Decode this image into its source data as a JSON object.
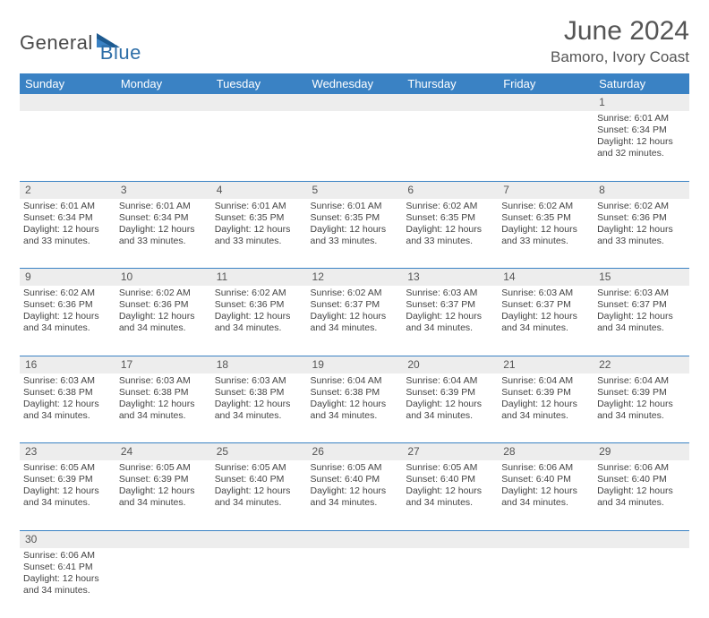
{
  "logo": {
    "dark": "General",
    "blue": "Blue"
  },
  "title": "June 2024",
  "location": "Bamoro, Ivory Coast",
  "colors": {
    "header_bg": "#3a82c4",
    "header_fg": "#ffffff",
    "daynum_bg": "#ededed",
    "rule": "#3a82c4",
    "text": "#444444",
    "logo_dark": "#4a4a4a",
    "logo_blue": "#2f6fa8"
  },
  "weekdays": [
    "Sunday",
    "Monday",
    "Tuesday",
    "Wednesday",
    "Thursday",
    "Friday",
    "Saturday"
  ],
  "first_weekday_index": 6,
  "days": [
    {
      "n": 1,
      "sr": "6:01 AM",
      "ss": "6:34 PM",
      "dl": "12 hours and 32 minutes."
    },
    {
      "n": 2,
      "sr": "6:01 AM",
      "ss": "6:34 PM",
      "dl": "12 hours and 33 minutes."
    },
    {
      "n": 3,
      "sr": "6:01 AM",
      "ss": "6:34 PM",
      "dl": "12 hours and 33 minutes."
    },
    {
      "n": 4,
      "sr": "6:01 AM",
      "ss": "6:35 PM",
      "dl": "12 hours and 33 minutes."
    },
    {
      "n": 5,
      "sr": "6:01 AM",
      "ss": "6:35 PM",
      "dl": "12 hours and 33 minutes."
    },
    {
      "n": 6,
      "sr": "6:02 AM",
      "ss": "6:35 PM",
      "dl": "12 hours and 33 minutes."
    },
    {
      "n": 7,
      "sr": "6:02 AM",
      "ss": "6:35 PM",
      "dl": "12 hours and 33 minutes."
    },
    {
      "n": 8,
      "sr": "6:02 AM",
      "ss": "6:36 PM",
      "dl": "12 hours and 33 minutes."
    },
    {
      "n": 9,
      "sr": "6:02 AM",
      "ss": "6:36 PM",
      "dl": "12 hours and 34 minutes."
    },
    {
      "n": 10,
      "sr": "6:02 AM",
      "ss": "6:36 PM",
      "dl": "12 hours and 34 minutes."
    },
    {
      "n": 11,
      "sr": "6:02 AM",
      "ss": "6:36 PM",
      "dl": "12 hours and 34 minutes."
    },
    {
      "n": 12,
      "sr": "6:02 AM",
      "ss": "6:37 PM",
      "dl": "12 hours and 34 minutes."
    },
    {
      "n": 13,
      "sr": "6:03 AM",
      "ss": "6:37 PM",
      "dl": "12 hours and 34 minutes."
    },
    {
      "n": 14,
      "sr": "6:03 AM",
      "ss": "6:37 PM",
      "dl": "12 hours and 34 minutes."
    },
    {
      "n": 15,
      "sr": "6:03 AM",
      "ss": "6:37 PM",
      "dl": "12 hours and 34 minutes."
    },
    {
      "n": 16,
      "sr": "6:03 AM",
      "ss": "6:38 PM",
      "dl": "12 hours and 34 minutes."
    },
    {
      "n": 17,
      "sr": "6:03 AM",
      "ss": "6:38 PM",
      "dl": "12 hours and 34 minutes."
    },
    {
      "n": 18,
      "sr": "6:03 AM",
      "ss": "6:38 PM",
      "dl": "12 hours and 34 minutes."
    },
    {
      "n": 19,
      "sr": "6:04 AM",
      "ss": "6:38 PM",
      "dl": "12 hours and 34 minutes."
    },
    {
      "n": 20,
      "sr": "6:04 AM",
      "ss": "6:39 PM",
      "dl": "12 hours and 34 minutes."
    },
    {
      "n": 21,
      "sr": "6:04 AM",
      "ss": "6:39 PM",
      "dl": "12 hours and 34 minutes."
    },
    {
      "n": 22,
      "sr": "6:04 AM",
      "ss": "6:39 PM",
      "dl": "12 hours and 34 minutes."
    },
    {
      "n": 23,
      "sr": "6:05 AM",
      "ss": "6:39 PM",
      "dl": "12 hours and 34 minutes."
    },
    {
      "n": 24,
      "sr": "6:05 AM",
      "ss": "6:39 PM",
      "dl": "12 hours and 34 minutes."
    },
    {
      "n": 25,
      "sr": "6:05 AM",
      "ss": "6:40 PM",
      "dl": "12 hours and 34 minutes."
    },
    {
      "n": 26,
      "sr": "6:05 AM",
      "ss": "6:40 PM",
      "dl": "12 hours and 34 minutes."
    },
    {
      "n": 27,
      "sr": "6:05 AM",
      "ss": "6:40 PM",
      "dl": "12 hours and 34 minutes."
    },
    {
      "n": 28,
      "sr": "6:06 AM",
      "ss": "6:40 PM",
      "dl": "12 hours and 34 minutes."
    },
    {
      "n": 29,
      "sr": "6:06 AM",
      "ss": "6:40 PM",
      "dl": "12 hours and 34 minutes."
    },
    {
      "n": 30,
      "sr": "6:06 AM",
      "ss": "6:41 PM",
      "dl": "12 hours and 34 minutes."
    }
  ],
  "labels": {
    "sunrise": "Sunrise:",
    "sunset": "Sunset:",
    "daylight": "Daylight:"
  }
}
